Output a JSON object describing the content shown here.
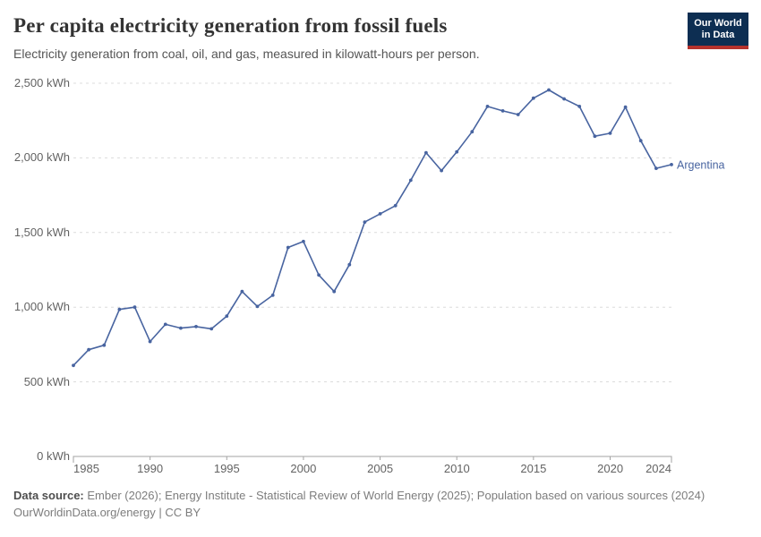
{
  "header": {
    "title": "Per capita electricity generation from fossil fuels",
    "subtitle": "Electricity generation from coal, oil, and gas, measured in kilowatt-hours per person.",
    "logo": {
      "line1": "Our World",
      "line2": "in Data",
      "bg_color": "#0d2e52",
      "bar_color": "#b5322c"
    }
  },
  "chart_data": {
    "type": "line",
    "title": "Per capita electricity generation from fossil fuels",
    "subtitle": "Electricity generation from coal, oil, and gas, measured in kilowatt-hours per person.",
    "unit": "kWh",
    "x_range": [
      1985,
      2024
    ],
    "y_range": [
      0,
      2500
    ],
    "grid": "horizontal dashed",
    "legend_position": "end-of-line label",
    "x": [
      1985,
      1986,
      1987,
      1988,
      1989,
      1990,
      1991,
      1992,
      1993,
      1994,
      1995,
      1996,
      1997,
      1998,
      1999,
      2000,
      2001,
      2002,
      2003,
      2004,
      2005,
      2006,
      2007,
      2008,
      2009,
      2010,
      2011,
      2012,
      2013,
      2014,
      2015,
      2016,
      2017,
      2018,
      2019,
      2020,
      2021,
      2022,
      2023,
      2024
    ],
    "series": [
      {
        "name": "Argentina",
        "color": "#4864a0",
        "values": [
          610,
          715,
          745,
          985,
          1000,
          770,
          885,
          860,
          870,
          855,
          940,
          1105,
          1005,
          1080,
          1400,
          1440,
          1215,
          1105,
          1285,
          1570,
          1625,
          1680,
          1850,
          2035,
          1915,
          2040,
          2175,
          2345,
          2315,
          2290,
          2400,
          2455,
          2395,
          2345,
          2145,
          2165,
          2340,
          2115,
          1930,
          1955
        ]
      }
    ],
    "y_ticks": [
      0,
      500,
      1000,
      1500,
      2000,
      2500
    ],
    "y_tick_labels": [
      "0 kWh",
      "500 kWh",
      "1,000 kWh",
      "1,500 kWh",
      "2,000 kWh",
      "2,500 kWh"
    ],
    "x_tick_years": [
      1985,
      1990,
      1995,
      2000,
      2005,
      2010,
      2015,
      2020,
      2024
    ],
    "x_tick_labels": [
      "1985",
      "1990",
      "1995",
      "2000",
      "2005",
      "2010",
      "2015",
      "2020",
      "2024"
    ],
    "colors": {
      "line": "#4864a0",
      "gridline": "#dcdcdc",
      "axis": "#a3a3a3",
      "tick_text": "#636363"
    }
  },
  "footer": {
    "source_label": "Data source:",
    "source_text": " Ember (2026); Energy Institute - Statistical Review of World Energy (2025); Population based on various sources (2024)",
    "url": "OurWorldinData.org/energy",
    "separator": " | ",
    "license": "CC BY"
  }
}
